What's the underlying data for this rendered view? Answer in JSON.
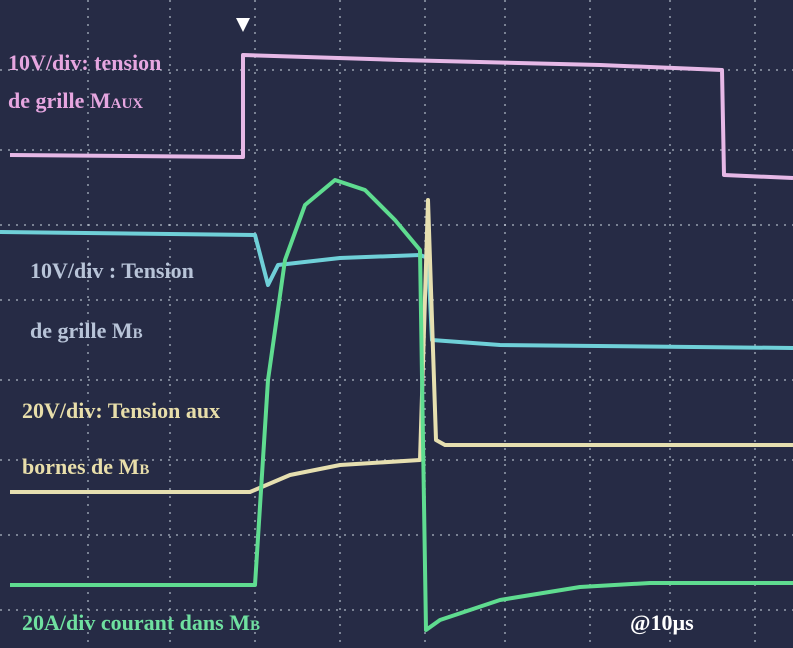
{
  "labels": {
    "gate_aux": {
      "line1": "10V/div: tension",
      "line2": "de grille M",
      "sub": "AUX"
    },
    "gate_b": {
      "line1": "10V/div : Tension",
      "line2": "de grille M",
      "sub": "B"
    },
    "voltage_b": {
      "line1": "20V/div: Tension aux",
      "line2": "bornes de  M",
      "sub": "B"
    },
    "current_b": {
      "line1": "20A/div courant dans  M",
      "sub": "B"
    },
    "timebase": "@10µs"
  }
}
